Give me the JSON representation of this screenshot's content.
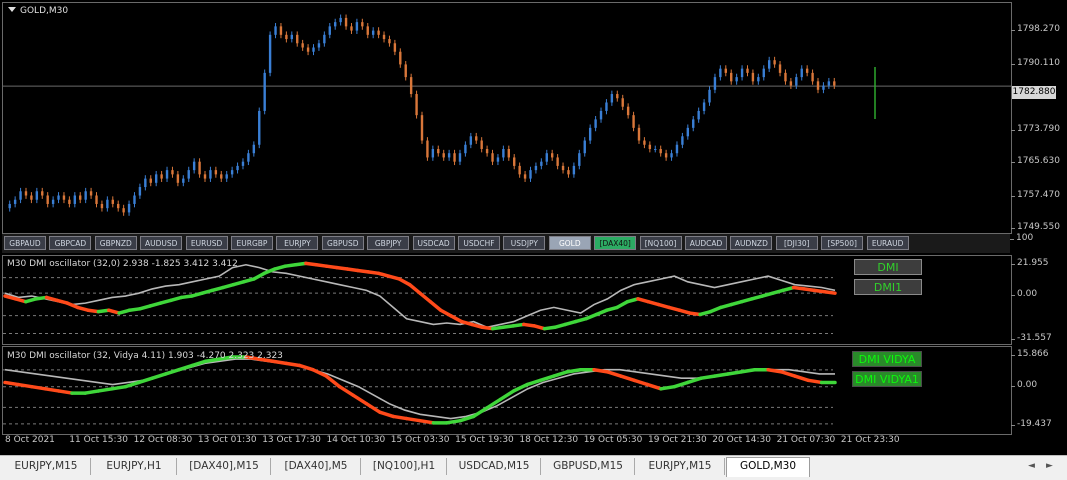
{
  "colors": {
    "bull": "#3a7fd5",
    "bear": "#d9773a",
    "green": "#3fd63a",
    "red": "#ff4a1a",
    "gray": "#b8b8b8",
    "dotted": "#7a7a7a"
  },
  "main": {
    "title": "GOLD,M30",
    "current_price": "1782.880",
    "price_ticks": [
      "1798.270",
      "1790.110",
      "1782.880",
      "1773.790",
      "1765.630",
      "1757.470",
      "1749.550"
    ]
  },
  "symbols": [
    {
      "label": "GBPAUD",
      "state": "normal"
    },
    {
      "label": "GBPCAD",
      "state": "normal"
    },
    {
      "label": "GBPNZD",
      "state": "normal"
    },
    {
      "label": "AUDUSD",
      "state": "normal"
    },
    {
      "label": "EURUSD",
      "state": "normal"
    },
    {
      "label": "EURGBP",
      "state": "normal"
    },
    {
      "label": "EURJPY",
      "state": "normal"
    },
    {
      "label": "GBPUSD",
      "state": "normal"
    },
    {
      "label": "GBPJPY",
      "state": "normal"
    },
    {
      "label": "USDCAD",
      "state": "normal"
    },
    {
      "label": "USDCHF",
      "state": "normal"
    },
    {
      "label": "USDJPY",
      "state": "normal"
    },
    {
      "label": "GOLD",
      "state": "selected"
    },
    {
      "label": "[DAX40]",
      "state": "green"
    },
    {
      "label": "[NQ100]",
      "state": "normal"
    },
    {
      "label": "AUDCAD",
      "state": "normal"
    },
    {
      "label": "AUDNZD",
      "state": "normal"
    },
    {
      "label": "[DJI30]",
      "state": "normal"
    },
    {
      "label": "[SP500]",
      "state": "normal"
    },
    {
      "label": "EURAUD",
      "state": "normal"
    }
  ],
  "ind1": {
    "label": "M30 DMI oscillator (32,0) 2.938 -1.825 3.412 3.412",
    "scale_top": "100",
    "ticks": [
      "21.955",
      "0.00",
      "-31.557"
    ],
    "btn1": "DMI",
    "btn2": "DMI1"
  },
  "ind2": {
    "label": "M30 DMI oscillator (32, Vidya 4.11) 1.903 -4.270 2.323 2.323",
    "ticks": [
      "15.866",
      "0.00",
      "-19.437"
    ],
    "btn1": "DMI VIDYA",
    "btn2": "DMI VIDYA1"
  },
  "time_labels": [
    "8 Oct 2021",
    "11 Oct 15:30",
    "12 Oct 08:30",
    "13 Oct 01:30",
    "13 Oct 17:30",
    "14 Oct 10:30",
    "15 Oct 03:30",
    "15 Oct 19:30",
    "18 Oct 12:30",
    "19 Oct 05:30",
    "19 Oct 21:30",
    "20 Oct 14:30",
    "21 Oct 07:30",
    "21 Oct 23:30"
  ],
  "tabs": [
    "EURJPY,M15",
    "EURJPY,H1",
    "[DAX40],M15",
    "[DAX40],M5",
    "[NQ100],H1",
    "USDCAD,M15",
    "GBPUSD,M15",
    "EURJPY,M15",
    "GOLD,M30"
  ],
  "active_tab": "GOLD,M30",
  "chart_data": [
    {
      "type": "candlestick",
      "title": "GOLD,M30",
      "ylim": [
        1749.55,
        1798.27
      ],
      "close": [
        1755,
        1756,
        1758,
        1757,
        1756,
        1758,
        1757,
        1755,
        1756,
        1757,
        1756,
        1755,
        1757,
        1756,
        1758,
        1757,
        1755,
        1754,
        1756,
        1755,
        1754,
        1753,
        1755,
        1757,
        1759,
        1761,
        1760,
        1762,
        1761,
        1763,
        1762,
        1760,
        1761,
        1763,
        1765,
        1762,
        1761,
        1763,
        1762,
        1761,
        1762,
        1763,
        1764,
        1765,
        1767,
        1769,
        1777,
        1786,
        1795,
        1797,
        1795,
        1794,
        1795,
        1793,
        1792,
        1791,
        1792,
        1793,
        1795,
        1797,
        1798,
        1799,
        1797,
        1796,
        1798,
        1797,
        1795,
        1796,
        1795,
        1794,
        1793,
        1791,
        1788,
        1785,
        1781,
        1776,
        1770,
        1766,
        1768,
        1767,
        1766,
        1767,
        1765,
        1767,
        1769,
        1771,
        1770,
        1768,
        1767,
        1765,
        1766,
        1768,
        1766,
        1764,
        1762,
        1761,
        1763,
        1764,
        1765,
        1767,
        1766,
        1764,
        1763,
        1762,
        1764,
        1767,
        1770,
        1773,
        1775,
        1777,
        1779,
        1781,
        1780,
        1778,
        1776,
        1773,
        1770,
        1769,
        1768,
        1768,
        1767,
        1766,
        1767,
        1769,
        1771,
        1773,
        1775,
        1777,
        1779,
        1782,
        1785,
        1787,
        1786,
        1784,
        1785,
        1787,
        1786,
        1784,
        1785,
        1787,
        1789,
        1788,
        1786,
        1784,
        1783,
        1785,
        1787,
        1786,
        1784,
        1782,
        1783,
        1784,
        1783
      ]
    },
    {
      "type": "line",
      "title": "M30 DMI oscillator (32,0) 2.938 -1.825 3.412 3.412",
      "ylim": [
        -31.557,
        21.955
      ],
      "series": [
        {
          "values": [
            -2,
            -4,
            -6,
            -4,
            -3,
            -5,
            -7,
            -10,
            -12,
            -13,
            -12,
            -14,
            -12,
            -11,
            -9,
            -7,
            -5,
            -3,
            -2,
            0,
            2,
            4,
            6,
            8,
            10,
            14,
            17,
            19,
            20,
            21,
            20,
            19,
            18,
            17,
            16,
            15,
            14,
            12,
            10,
            6,
            0,
            -6,
            -12,
            -16,
            -20,
            -22,
            -24,
            -25,
            -24,
            -23,
            -22,
            -23,
            -25,
            -24,
            -22,
            -20,
            -18,
            -15,
            -12,
            -10,
            -6,
            -4,
            -6,
            -8,
            -10,
            -12,
            -14,
            -15,
            -13,
            -10,
            -8,
            -6,
            -4,
            -2,
            0,
            2,
            4,
            3,
            2,
            1,
            0
          ]
        },
        {
          "values": [
            0,
            -3,
            -2,
            -4,
            -6,
            -8,
            -7,
            -5,
            -3,
            -2,
            0,
            3,
            5,
            6,
            8,
            10,
            12,
            18,
            20,
            18,
            15,
            14,
            12,
            10,
            8,
            6,
            4,
            2,
            -2,
            -10,
            -18,
            -20,
            -22,
            -21,
            -22,
            -20,
            -24,
            -22,
            -20,
            -16,
            -12,
            -10,
            -12,
            -14,
            -8,
            -4,
            2,
            6,
            8,
            10,
            12,
            8,
            6,
            4,
            6,
            8,
            10,
            12,
            9,
            6,
            5,
            4,
            2
          ]
        }
      ]
    },
    {
      "type": "line",
      "title": "M30 DMI oscillator (32, Vidya 4.11) 1.903 -4.270 2.323 2.323",
      "ylim": [
        -19.437,
        15.866
      ],
      "series": [
        {
          "values": [
            2,
            1,
            0,
            -1,
            -2,
            -3,
            -3,
            -2,
            -1,
            0,
            2,
            4,
            6,
            8,
            10,
            12,
            13,
            14,
            14,
            13,
            12,
            11,
            10,
            8,
            5,
            0,
            -4,
            -8,
            -12,
            -14,
            -15,
            -16,
            -17,
            -17,
            -16,
            -14,
            -10,
            -6,
            -2,
            1,
            3,
            5,
            7,
            8,
            8,
            7,
            5,
            3,
            1,
            -1,
            0,
            2,
            4,
            5,
            6,
            7,
            8,
            8,
            7,
            5,
            3,
            2,
            2
          ]
        },
        {
          "values": [
            8,
            7,
            6,
            5,
            4,
            3,
            2,
            1,
            2,
            3,
            5,
            7,
            9,
            11,
            12,
            13,
            13,
            12,
            11,
            10,
            8,
            6,
            3,
            0,
            -4,
            -8,
            -11,
            -13,
            -14,
            -15,
            -14,
            -12,
            -9,
            -5,
            -1,
            2,
            4,
            6,
            7,
            8,
            8,
            7,
            6,
            5,
            4,
            4,
            5,
            6,
            7,
            8,
            8,
            8,
            7,
            6,
            6
          ]
        }
      ]
    }
  ]
}
